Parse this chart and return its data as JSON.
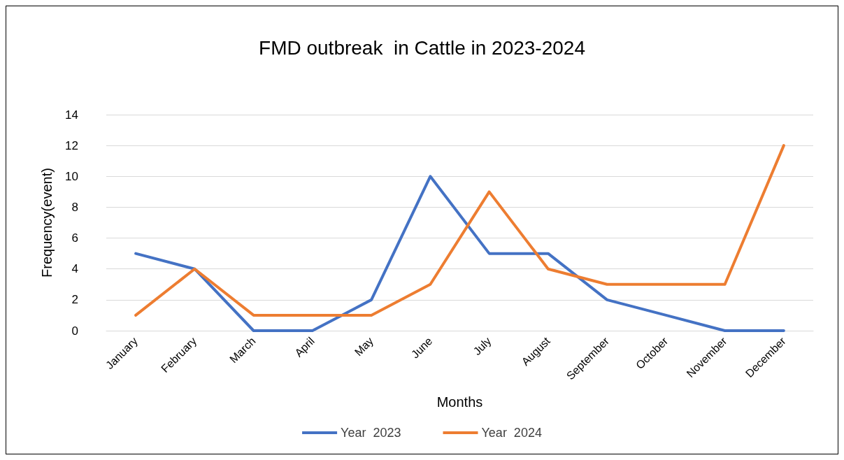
{
  "chart_data": {
    "type": "line",
    "title": "FMD outbreak  in Cattle in 2023-2024",
    "xlabel": "Months",
    "ylabel": "Frequency(event)",
    "categories": [
      "January",
      "February",
      "March",
      "April",
      "May",
      "June",
      "July",
      "August",
      "September",
      "October",
      "November",
      "December"
    ],
    "series": [
      {
        "name": "Year  2023",
        "color": "#4472c4",
        "values": [
          5,
          4,
          0,
          0,
          2,
          10,
          5,
          5,
          2,
          1,
          0,
          0
        ]
      },
      {
        "name": "Year  2024",
        "color": "#ed7d31",
        "values": [
          1,
          4,
          1,
          1,
          1,
          3,
          9,
          4,
          3,
          3,
          3,
          12
        ]
      }
    ],
    "ylim": [
      0,
      14
    ],
    "yticks": [
      0,
      2,
      4,
      6,
      8,
      10,
      12,
      14
    ],
    "grid": "y",
    "legend": "bottom",
    "marker": "none",
    "line_style": "solid"
  }
}
